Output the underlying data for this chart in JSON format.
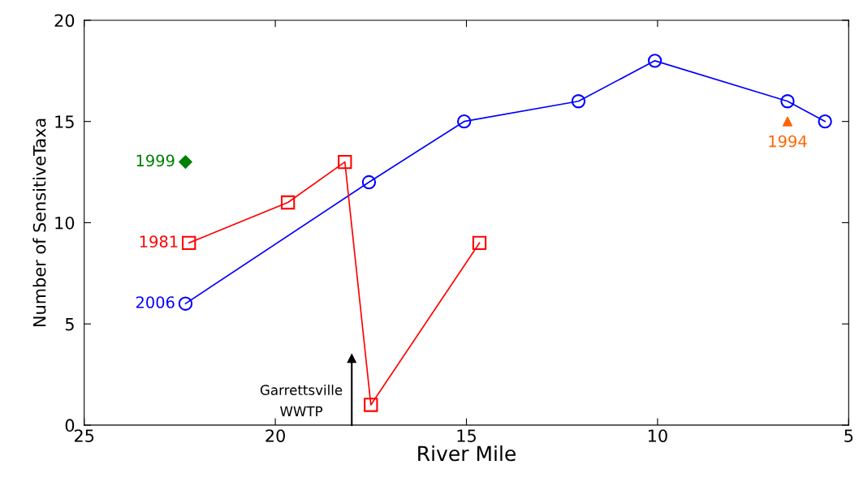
{
  "chart_data": {
    "type": "line",
    "xlabel": "River Mile",
    "ylabel": "Number of SensitiveTaxa",
    "xlim": [
      25,
      5
    ],
    "xticks": [
      25,
      20,
      15,
      10,
      5
    ],
    "ylim": [
      0,
      20
    ],
    "yticks": [
      0,
      5,
      10,
      15,
      20
    ],
    "grid": false,
    "legend": false,
    "series": [
      {
        "name": "2006",
        "color": "#0000ff",
        "marker": "circle",
        "x": [
          22.35,
          17.55,
          15.06,
          12.07,
          10.07,
          6.6,
          5.62
        ],
        "values": [
          6,
          12,
          15,
          16,
          18,
          16,
          15
        ]
      },
      {
        "name": "1981",
        "color": "#ff0000",
        "marker": "square",
        "x": [
          22.26,
          19.67,
          18.18,
          17.5,
          14.66
        ],
        "values": [
          9,
          11,
          13,
          1,
          9
        ]
      },
      {
        "name": "1999",
        "color": "#008000",
        "type": "scatter",
        "marker": "diamond",
        "x": [
          22.35
        ],
        "values": [
          13
        ]
      },
      {
        "name": "1994",
        "color": "#ff6600",
        "type": "scatter",
        "marker": "triangle",
        "x": [
          6.6
        ],
        "values": [
          15
        ]
      }
    ],
    "ref_lines": [
      {
        "axis": "x",
        "value": 18.0,
        "label": "Garrettsville\nWWTP"
      }
    ]
  }
}
